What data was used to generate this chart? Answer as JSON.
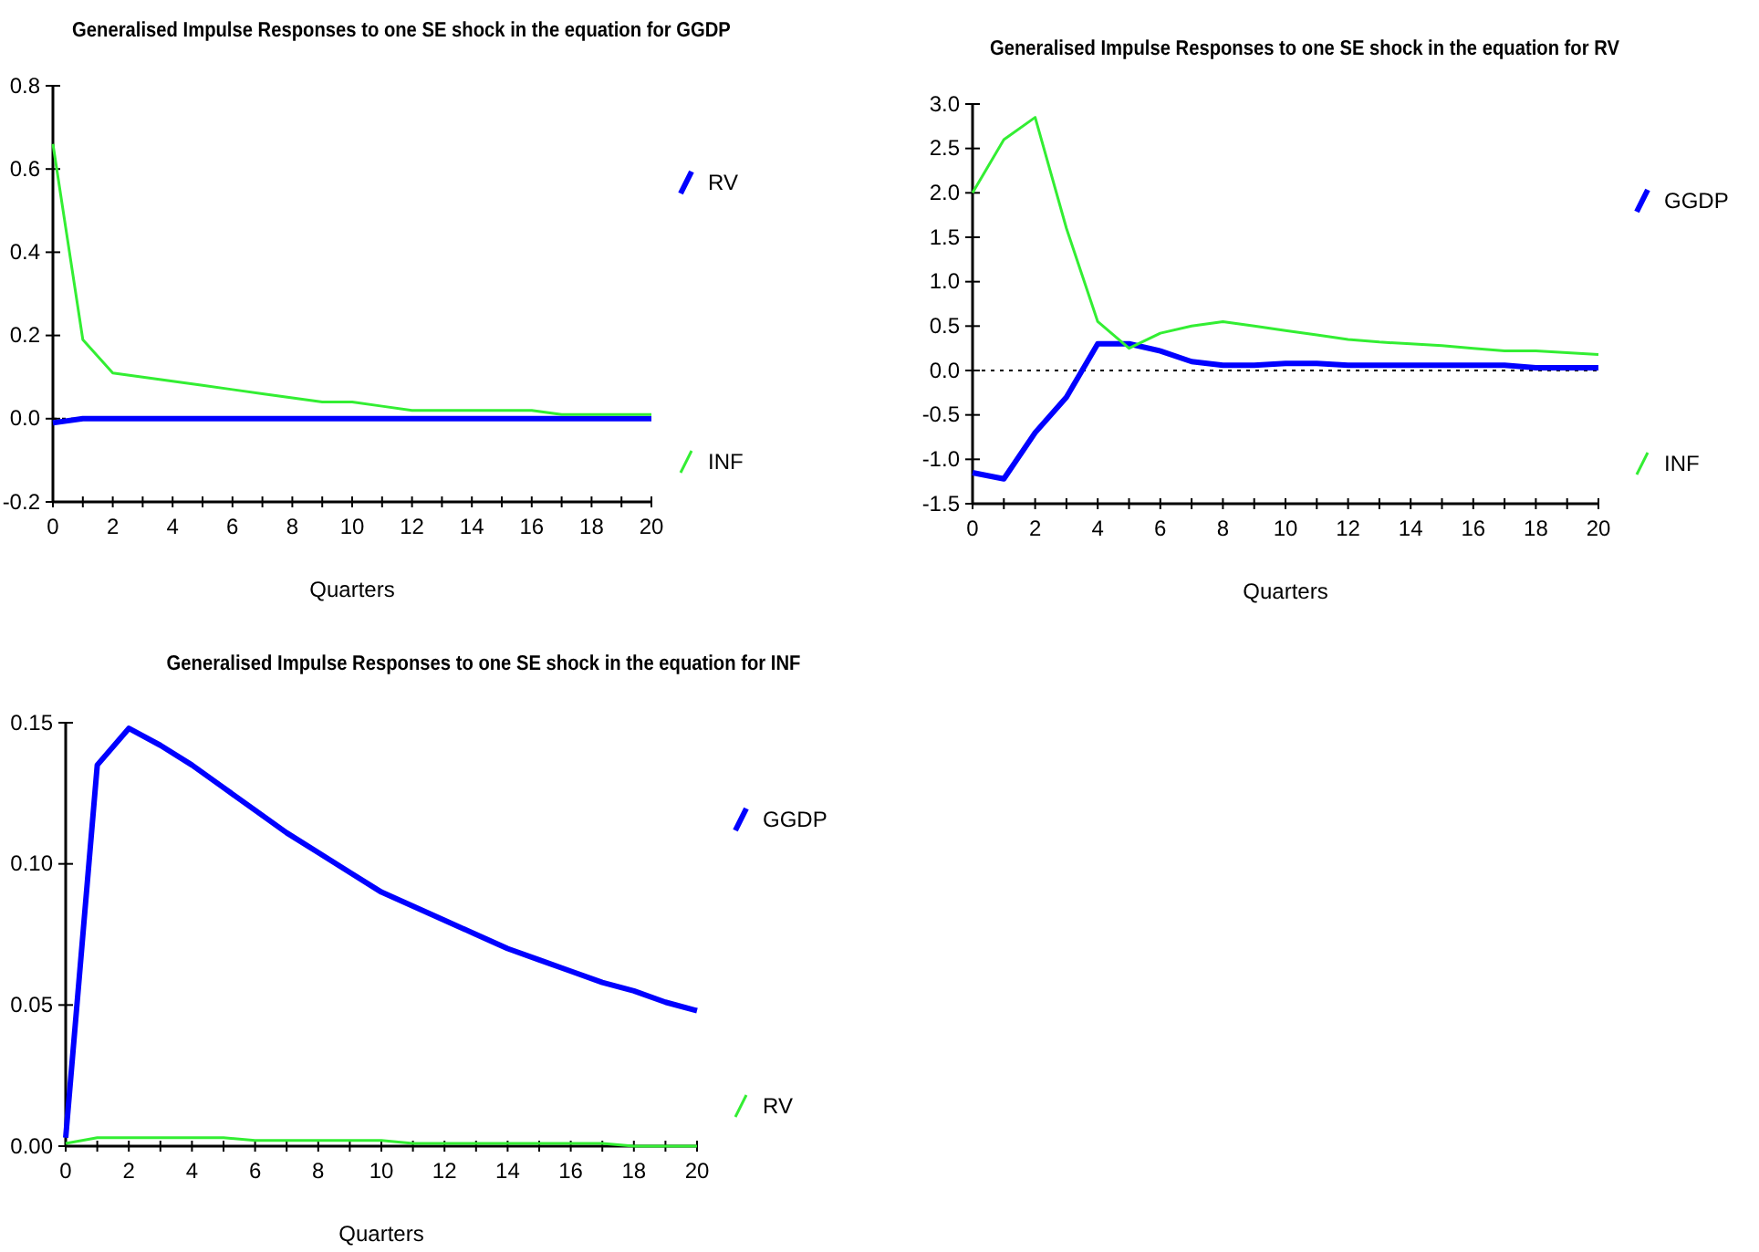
{
  "chart_data": [
    {
      "type": "line",
      "title": "Generalised Impulse Responses to one SE shock in the equation for GGDP",
      "xlabel": "Quarters",
      "x": [
        0,
        1,
        2,
        3,
        4,
        5,
        6,
        7,
        8,
        9,
        10,
        11,
        12,
        13,
        14,
        15,
        16,
        17,
        18,
        19,
        20
      ],
      "series": [
        {
          "name": "RV",
          "color": "#0000ff",
          "values": [
            -0.01,
            0,
            0,
            0,
            0,
            0,
            0,
            0,
            0,
            0,
            0,
            0,
            0,
            0,
            0,
            0,
            0,
            0,
            0,
            0,
            0
          ]
        },
        {
          "name": "INF",
          "color": "#33ee33",
          "values": [
            0.66,
            0.19,
            0.11,
            0.1,
            0.09,
            0.08,
            0.07,
            0.06,
            0.05,
            0.04,
            0.04,
            0.03,
            0.02,
            0.02,
            0.02,
            0.02,
            0.02,
            0.01,
            0.01,
            0.01,
            0.01
          ]
        }
      ],
      "xlim": [
        0,
        20
      ],
      "xticks": [
        0,
        {
          "value": 1,
          "label": null
        },
        2,
        {
          "value": 3,
          "label": null
        },
        4,
        {
          "value": 5,
          "label": null
        },
        6,
        {
          "value": 7,
          "label": null
        },
        8,
        {
          "value": 9,
          "label": null
        },
        10,
        {
          "value": 11,
          "label": null
        },
        12,
        {
          "value": 13,
          "label": null
        },
        14,
        {
          "value": 15,
          "label": null
        },
        16,
        {
          "value": 17,
          "label": null
        },
        18,
        {
          "value": 19,
          "label": null
        },
        20
      ],
      "ylim": [
        -0.2,
        0.8
      ],
      "yticks": [
        {
          "value": -0.2,
          "label": "-0.2"
        },
        {
          "value": 0,
          "label": "0.0"
        },
        0.2,
        0.4,
        0.6,
        0.8
      ],
      "ref_lines": [
        {
          "axis": "y",
          "value": 0,
          "label": null,
          "line_style": "dotted"
        }
      ],
      "legend": "right",
      "grid": false
    },
    {
      "type": "line",
      "title": "Generalised Impulse Responses to one SE shock in the equation for RV",
      "xlabel": "Quarters",
      "x": [
        0,
        1,
        2,
        3,
        4,
        5,
        6,
        7,
        8,
        9,
        10,
        11,
        12,
        13,
        14,
        15,
        16,
        17,
        18,
        19,
        20
      ],
      "series": [
        {
          "name": "GGDP",
          "color": "#0000ff",
          "values": [
            -1.15,
            -1.22,
            -0.7,
            -0.3,
            0.3,
            0.3,
            0.22,
            0.1,
            0.06,
            0.06,
            0.08,
            0.08,
            0.06,
            0.06,
            0.06,
            0.06,
            0.06,
            0.06,
            0.03,
            0.03,
            0.03
          ]
        },
        {
          "name": "INF",
          "color": "#33ee33",
          "values": [
            2.0,
            2.6,
            2.85,
            1.6,
            0.55,
            0.25,
            0.42,
            0.5,
            0.55,
            0.5,
            0.45,
            0.4,
            0.35,
            0.32,
            0.3,
            0.28,
            0.25,
            0.22,
            0.22,
            0.2,
            0.18
          ]
        }
      ],
      "xlim": [
        0,
        20
      ],
      "xticks": [
        0,
        {
          "value": 1,
          "label": null
        },
        2,
        {
          "value": 3,
          "label": null
        },
        4,
        {
          "value": 5,
          "label": null
        },
        6,
        {
          "value": 7,
          "label": null
        },
        8,
        {
          "value": 9,
          "label": null
        },
        10,
        {
          "value": 11,
          "label": null
        },
        12,
        {
          "value": 13,
          "label": null
        },
        14,
        {
          "value": 15,
          "label": null
        },
        16,
        {
          "value": 17,
          "label": null
        },
        18,
        {
          "value": 19,
          "label": null
        },
        20
      ],
      "ylim": [
        -1.5,
        3.0
      ],
      "yticks": [
        -1.5,
        {
          "value": -1,
          "label": "-1.0"
        },
        -0.5,
        {
          "value": 0,
          "label": "0.0"
        },
        0.5,
        {
          "value": 1,
          "label": "1.0"
        },
        1.5,
        {
          "value": 2,
          "label": "2.0"
        },
        2.5,
        {
          "value": 3,
          "label": "3.0"
        }
      ],
      "ref_lines": [
        {
          "axis": "y",
          "value": 0,
          "label": null,
          "line_style": "dotted"
        }
      ],
      "legend": "right",
      "grid": false
    },
    {
      "type": "line",
      "title": "Generalised Impulse Responses to one SE shock in the equation for INF",
      "xlabel": "Quarters",
      "x": [
        0,
        1,
        2,
        3,
        4,
        5,
        6,
        7,
        8,
        9,
        10,
        11,
        12,
        13,
        14,
        15,
        16,
        17,
        18,
        19,
        20
      ],
      "series": [
        {
          "name": "GGDP",
          "color": "#0000ff",
          "values": [
            0.003,
            0.135,
            0.148,
            0.142,
            0.135,
            0.127,
            0.119,
            0.111,
            0.104,
            0.097,
            0.09,
            0.085,
            0.08,
            0.075,
            0.07,
            0.066,
            0.062,
            0.058,
            0.055,
            0.051,
            0.048
          ]
        },
        {
          "name": "RV",
          "color": "#33ee33",
          "values": [
            0.001,
            0.003,
            0.003,
            0.003,
            0.003,
            0.003,
            0.002,
            0.002,
            0.002,
            0.002,
            0.002,
            0.001,
            0.001,
            0.001,
            0.001,
            0.001,
            0.001,
            0.001,
            0,
            0,
            0
          ]
        }
      ],
      "xlim": [
        0,
        20
      ],
      "xticks": [
        0,
        {
          "value": 1,
          "label": null
        },
        2,
        {
          "value": 3,
          "label": null
        },
        4,
        {
          "value": 5,
          "label": null
        },
        6,
        {
          "value": 7,
          "label": null
        },
        8,
        {
          "value": 9,
          "label": null
        },
        10,
        {
          "value": 11,
          "label": null
        },
        12,
        {
          "value": 13,
          "label": null
        },
        14,
        {
          "value": 15,
          "label": null
        },
        16,
        {
          "value": 17,
          "label": null
        },
        18,
        {
          "value": 19,
          "label": null
        },
        20
      ],
      "ylim": [
        0,
        0.15
      ],
      "yticks": [
        {
          "value": 0,
          "label": "0.00"
        },
        {
          "value": 0.05,
          "label": "0.05"
        },
        {
          "value": 0.1,
          "label": "0.10"
        },
        0.15
      ],
      "legend": "right",
      "grid": false
    }
  ]
}
